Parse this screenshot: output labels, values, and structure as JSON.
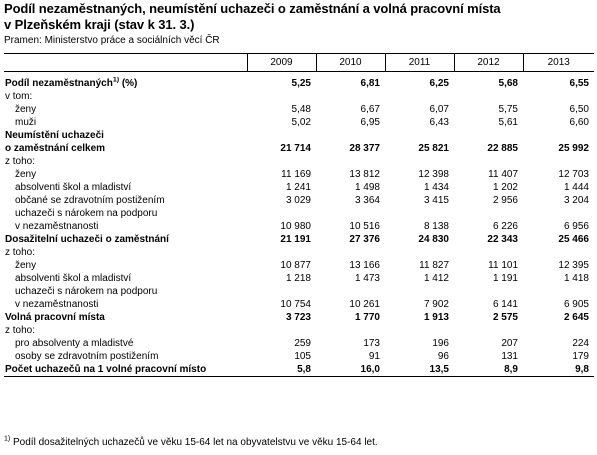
{
  "title_line1": "Podíl nezaměstnaných, neumístění uchazeči o zaměstnání a volná pracovní místa",
  "title_line2": "v Plzeňském kraji (stav k 31. 3.)",
  "source": "Pramen: Ministerstvo práce a sociálních věcí ČR",
  "years": [
    "2009",
    "2010",
    "2011",
    "2012",
    "2013"
  ],
  "rows": [
    {
      "label": "Podíl nezaměstnaných",
      "sup": "1)",
      "suffix": " (%)",
      "bold": true,
      "indent": 0,
      "values": [
        "5,25",
        "6,81",
        "6,25",
        "5,68",
        "6,55"
      ]
    },
    {
      "label": "v tom:",
      "bold": false,
      "indent": 0,
      "values": [
        "",
        "",
        "",
        "",
        ""
      ]
    },
    {
      "label": "ženy",
      "bold": false,
      "indent": 1,
      "values": [
        "5,48",
        "6,67",
        "6,07",
        "5,75",
        "6,50"
      ]
    },
    {
      "label": "muži",
      "bold": false,
      "indent": 1,
      "values": [
        "5,02",
        "6,95",
        "6,43",
        "5,61",
        "6,60"
      ]
    },
    {
      "label": "Neumístění uchazeči",
      "bold": true,
      "indent": 0,
      "values": [
        "",
        "",
        "",
        "",
        ""
      ]
    },
    {
      "label": "o zaměstnání celkem",
      "bold": true,
      "indent": 0,
      "values": [
        "21 714",
        "28 377",
        "25 821",
        "22 885",
        "25 992"
      ]
    },
    {
      "label": "z toho:",
      "bold": false,
      "indent": 0,
      "values": [
        "",
        "",
        "",
        "",
        ""
      ]
    },
    {
      "label": "ženy",
      "bold": false,
      "indent": 1,
      "values": [
        "11 169",
        "13 812",
        "12 398",
        "11 407",
        "12 703"
      ]
    },
    {
      "label": "absolventi škol a mladiství",
      "bold": false,
      "indent": 1,
      "values": [
        "1 241",
        "1 498",
        "1 434",
        "1 202",
        "1 444"
      ]
    },
    {
      "label": "občané se zdravotním postižením",
      "bold": false,
      "indent": 1,
      "values": [
        "3 029",
        "3 364",
        "3 415",
        "2 956",
        "3 204"
      ]
    },
    {
      "label": "uchazeči s nárokem na podporu",
      "bold": false,
      "indent": 1,
      "values": [
        "",
        "",
        "",
        "",
        ""
      ]
    },
    {
      "label": "v nezaměstnanosti",
      "bold": false,
      "indent": 1,
      "values": [
        "10 980",
        "10 516",
        "8 138",
        "6 226",
        "6 956"
      ]
    },
    {
      "label": "Dosažitelní uchazeči o zaměstnání",
      "bold": true,
      "indent": 0,
      "values": [
        "21 191",
        "27 376",
        "24 830",
        "22 343",
        "25 466"
      ]
    },
    {
      "label": "z toho:",
      "bold": false,
      "indent": 0,
      "values": [
        "",
        "",
        "",
        "",
        ""
      ]
    },
    {
      "label": "ženy",
      "bold": false,
      "indent": 1,
      "values": [
        "10 877",
        "13 166",
        "11 827",
        "11 101",
        "12 395"
      ]
    },
    {
      "label": "absolventi škol a mladiství",
      "bold": false,
      "indent": 1,
      "values": [
        "1 218",
        "1 473",
        "1 412",
        "1 191",
        "1 418"
      ]
    },
    {
      "label": "uchazeči s nárokem na podporu",
      "bold": false,
      "indent": 1,
      "values": [
        "",
        "",
        "",
        "",
        ""
      ]
    },
    {
      "label": "v nezaměstnanosti",
      "bold": false,
      "indent": 1,
      "values": [
        "10 754",
        "10 261",
        "7 902",
        "6 141",
        "6 905"
      ]
    },
    {
      "label": "Volná pracovní místa",
      "bold": true,
      "indent": 0,
      "values": [
        "3 723",
        "1 770",
        "1 913",
        "2 575",
        "2 645"
      ]
    },
    {
      "label": "z toho:",
      "bold": false,
      "indent": 0,
      "values": [
        "",
        "",
        "",
        "",
        ""
      ]
    },
    {
      "label": "pro absolventy a mladistvé",
      "bold": false,
      "indent": 1,
      "values": [
        "259",
        "173",
        "196",
        "207",
        "224"
      ]
    },
    {
      "label": "osoby se zdravotním postižením",
      "bold": false,
      "indent": 1,
      "values": [
        "105",
        "91",
        "96",
        "131",
        "179"
      ]
    },
    {
      "label": "Počet uchazečů na 1 volné pracovní místo",
      "bold": true,
      "indent": 0,
      "values": [
        "5,8",
        "16,0",
        "13,5",
        "8,9",
        "9,8"
      ]
    }
  ],
  "footnote_mark": "1)",
  "footnote_text": " Podíl dosažitelných uchazečů ve věku 15-64 let na obyvatelstvu ve věku 15-64 let."
}
